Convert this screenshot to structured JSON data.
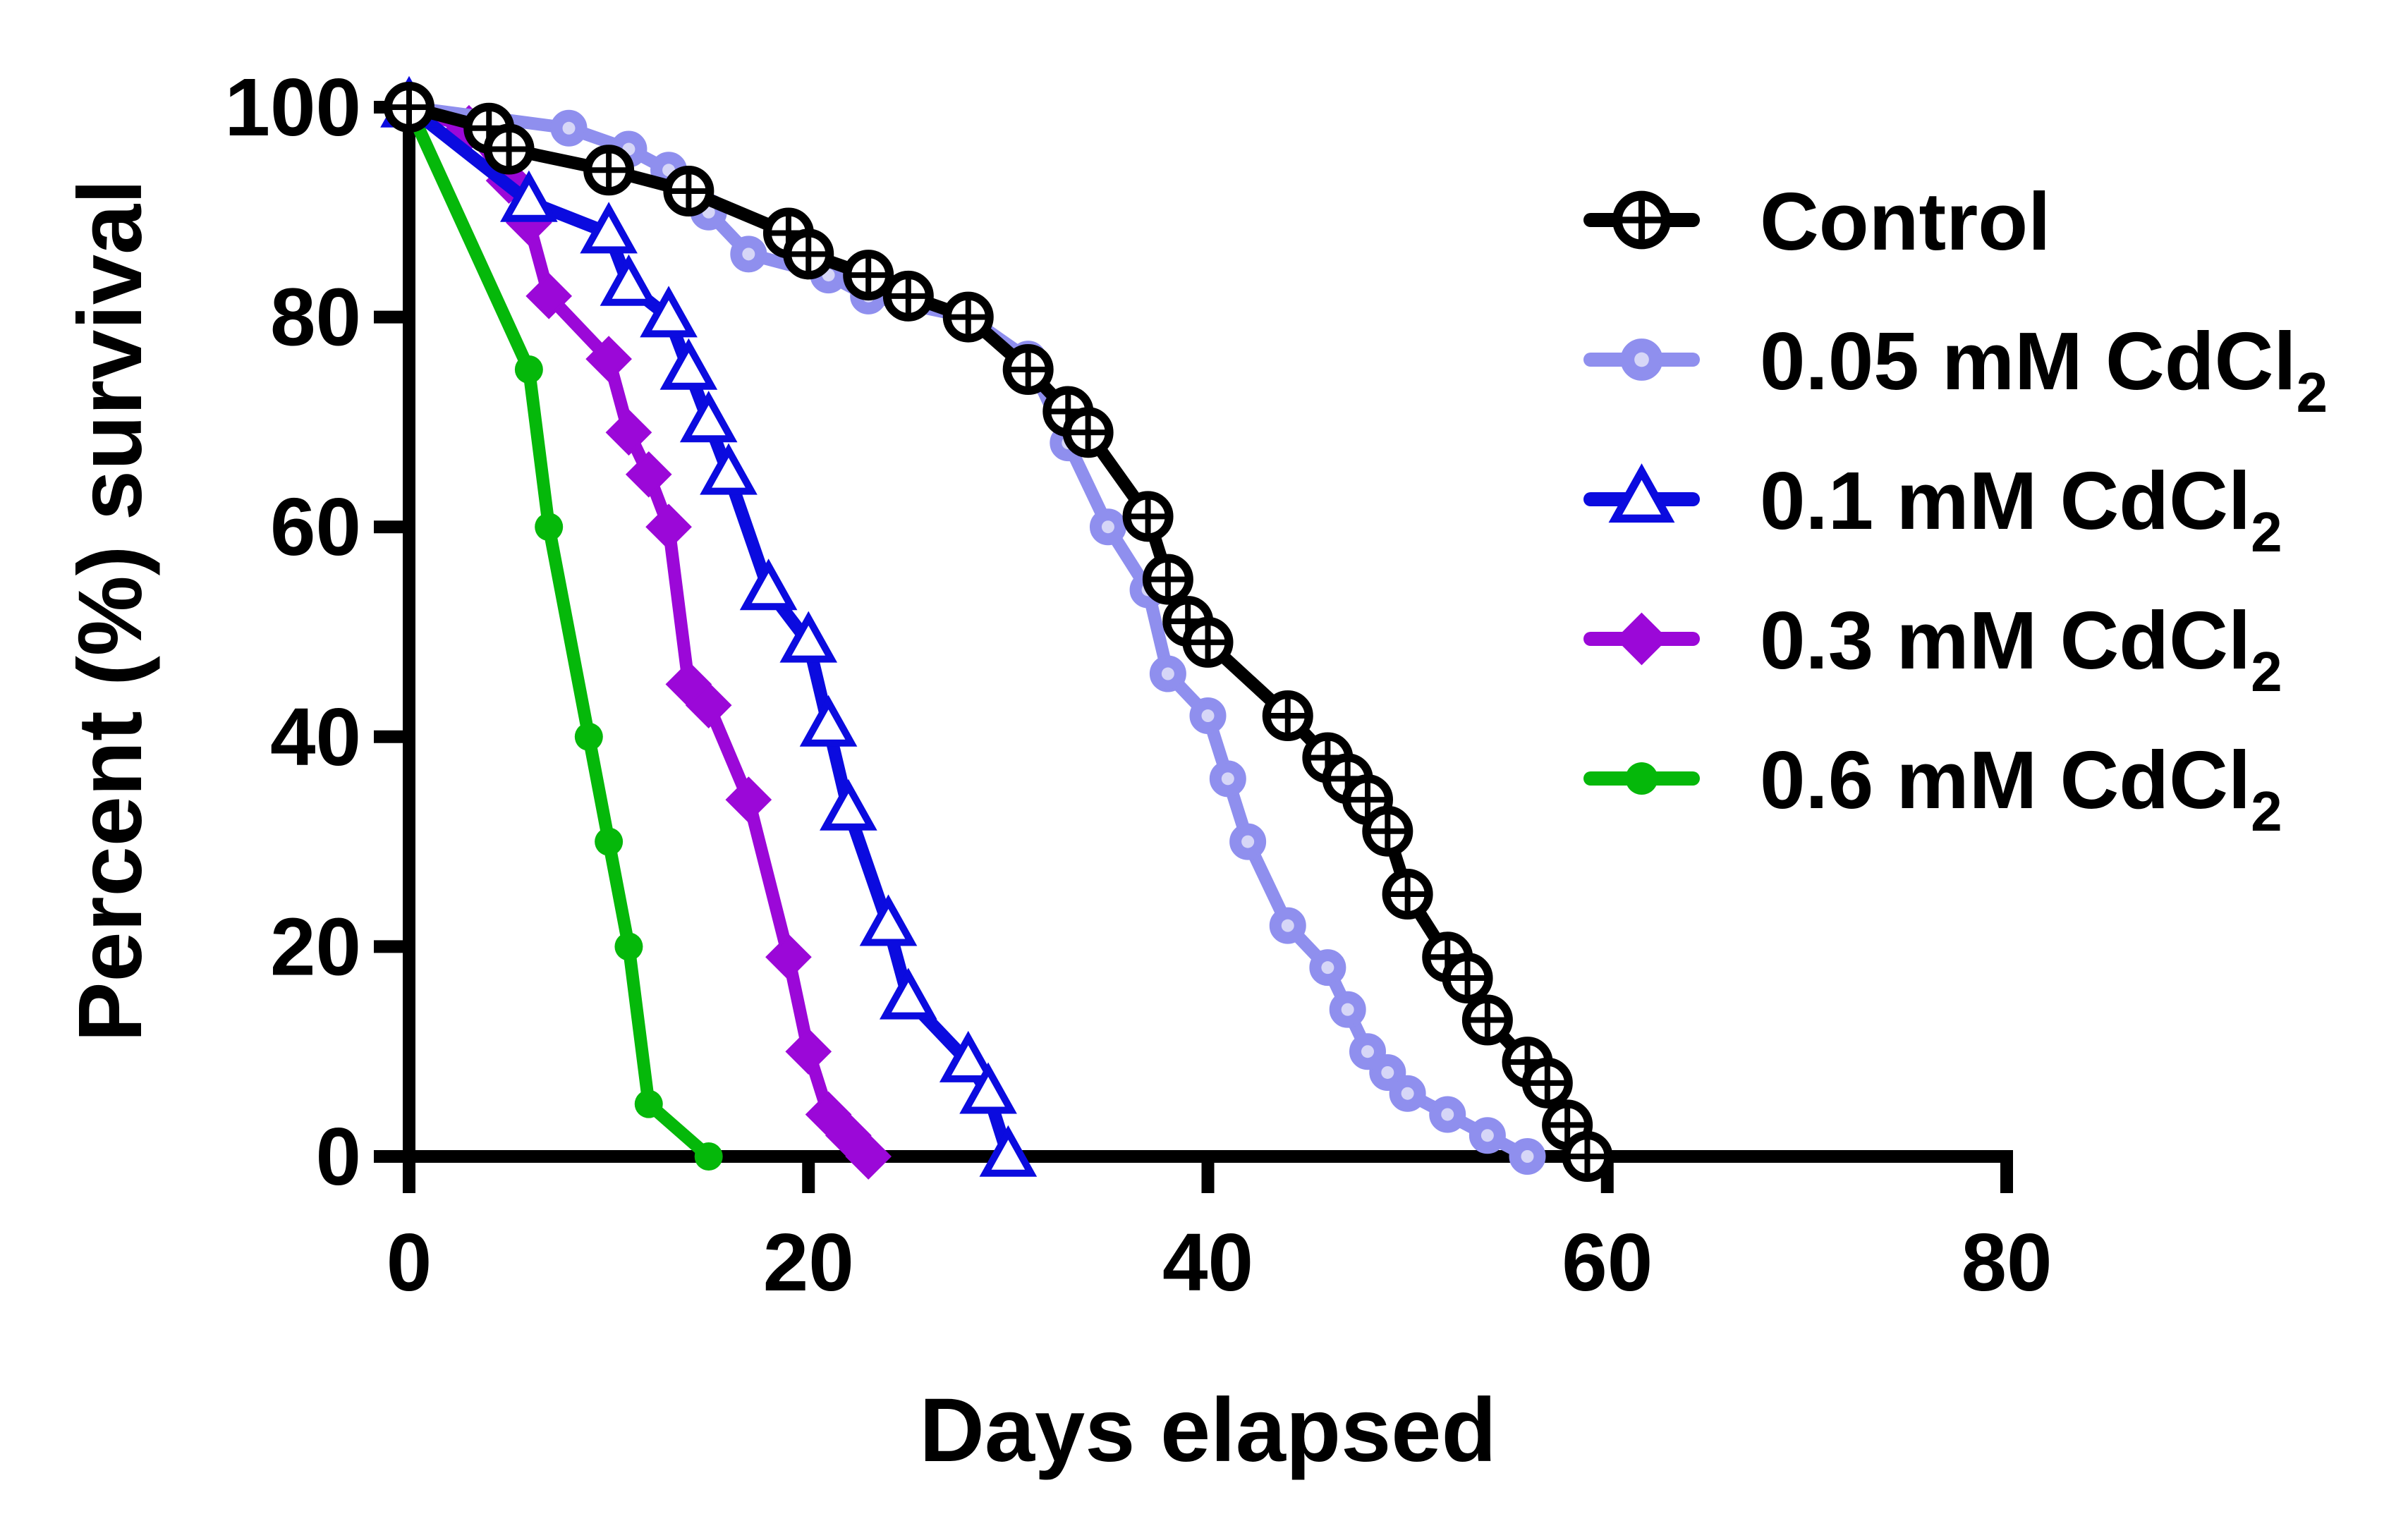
{
  "chart_data": {
    "type": "line",
    "title": "",
    "xlabel": "Days elapsed",
    "ylabel": "Percent (%) survival",
    "xlim": [
      0,
      80
    ],
    "ylim": [
      0,
      100
    ],
    "xticks": [
      0,
      20,
      40,
      60,
      80
    ],
    "yticks": [
      0,
      20,
      40,
      60,
      80,
      100
    ],
    "grid": false,
    "legend_position": "top-right",
    "series": [
      {
        "name": "Control",
        "name_suffix": "",
        "color": "#000000",
        "marker": "open-circle-crosshair",
        "x": [
          0,
          4,
          5,
          10,
          14,
          19,
          20,
          23,
          25,
          28,
          31,
          33,
          34,
          37,
          38,
          39,
          40,
          44,
          46,
          47,
          48,
          49,
          50,
          52,
          53,
          54,
          56,
          57,
          58,
          59
        ],
        "y": [
          100,
          98,
          96,
          94,
          92,
          88,
          86,
          84,
          82,
          80,
          75,
          71,
          69,
          61,
          55,
          51,
          49,
          42,
          38,
          36,
          34,
          31,
          25,
          19,
          17,
          13,
          9,
          7,
          3,
          0
        ]
      },
      {
        "name": "0.05 mM CdCl",
        "name_suffix": "2",
        "color": "#8f8fee",
        "marker": "circle-with-dot",
        "x": [
          0,
          8,
          11,
          13,
          15,
          17,
          21,
          23,
          28,
          31,
          33,
          35,
          37,
          38,
          40,
          41,
          42,
          44,
          46,
          47,
          48,
          49,
          50,
          52,
          54,
          56
        ],
        "y": [
          100,
          98,
          96,
          94,
          90,
          86,
          84,
          82,
          80,
          76,
          68,
          60,
          54,
          46,
          42,
          36,
          30,
          22,
          18,
          14,
          10,
          8,
          6,
          4,
          2,
          0
        ]
      },
      {
        "name": "0.1 mM CdCl",
        "name_suffix": "2",
        "color": "#0b0bdf",
        "marker": "open-triangle",
        "x": [
          0,
          6,
          10,
          11,
          13,
          14,
          15,
          16,
          18,
          20,
          21,
          22,
          24,
          25,
          28,
          29,
          30
        ],
        "y": [
          100,
          91,
          88,
          83,
          80,
          75,
          70,
          65,
          54,
          49,
          41,
          33,
          22,
          15,
          9,
          6,
          0
        ]
      },
      {
        "name": "0.3 mM CdCl",
        "name_suffix": "2",
        "color": "#9b08d8",
        "marker": "filled-diamond",
        "x": [
          0,
          3,
          5,
          6,
          7,
          10,
          11,
          12,
          13,
          14,
          15,
          17,
          19,
          20,
          21,
          22,
          23
        ],
        "y": [
          100,
          98,
          93,
          89,
          82,
          76,
          69,
          65,
          60,
          45,
          43,
          34,
          19,
          10,
          4,
          2,
          0
        ]
      },
      {
        "name": "0.6 mM CdCl",
        "name_suffix": "2",
        "color": "#05b80a",
        "marker": "filled-circle",
        "x": [
          0,
          6,
          7,
          9,
          10,
          11,
          12,
          15
        ],
        "y": [
          100,
          75,
          60,
          40,
          30,
          20,
          5,
          0
        ]
      }
    ]
  }
}
